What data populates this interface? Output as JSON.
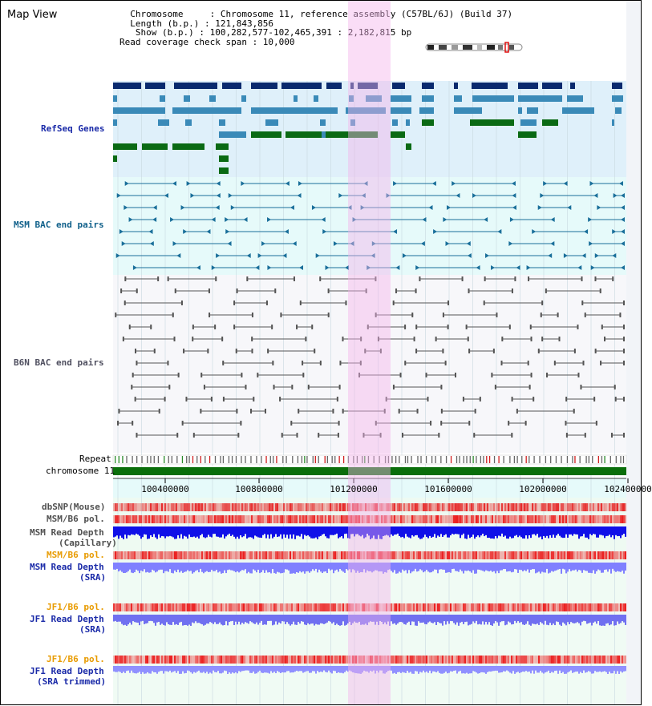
{
  "window": {
    "title": "Map View"
  },
  "info": {
    "lines": [
      "  Chromosome     : Chromosome 11, reference assembly (C57BL/6J) (Build 37)",
      "  Length (b.p.) : 121,843,856",
      "   Show (b.p.) : 100,282,577-102,465,391 : 2,182,815 bp",
      "Read coverage check span : 10,000"
    ]
  },
  "tracks": {
    "refseq": "RefSeq Genes",
    "msm_bac": "MSM BAC end pairs",
    "b6n_bac": "B6N BAC end pairs",
    "repeat": "Repeat",
    "chromosome": "chromosome 11",
    "dbsnp": "dbSNP(Mouse)",
    "msm_b6_pol_1": "MSM/B6 pol.",
    "msm_read_depth_cap_1": "MSM Read Depth",
    "msm_read_depth_cap_2": "(Capillary)",
    "msm_b6_pol_2": "MSM/B6 pol.",
    "msm_read_depth_sra_1": "MSM Read Depth",
    "msm_read_depth_sra_2": "(SRA)",
    "jf1_b6_pol_1": "JF1/B6 pol.",
    "jf1_read_depth_sra_1": "JF1 Read Depth",
    "jf1_read_depth_sra_2": "(SRA)",
    "jf1_b6_pol_2": "JF1/B6 pol.",
    "jf1_read_depth_trim_1": "JF1 Read Depth",
    "jf1_read_depth_trim_2": "(SRA trimmed)"
  },
  "axis": {
    "ticks": [
      "100400000",
      "100800000",
      "101200000",
      "101600000",
      "102000000",
      "102400000"
    ]
  },
  "colors": {
    "refseq_bg": "#dff0fa",
    "msm_bg": "#e6fafa",
    "b6n_bg": "#f7f7fa",
    "highlight": "#f8d8f4",
    "gene_dark": "#0a2a6e",
    "gene_mid": "#3a8ab8",
    "gene_green": "#0a6a14",
    "msm_line": "#1a6f9a",
    "b6n_line": "#555555",
    "chromosome_bar": "#0a6e0a",
    "label_blue": "#1a2aa8",
    "label_teal": "#10608a",
    "label_gray": "#505060",
    "label_orange": "#e89b00",
    "label_dark": "#303030"
  }
}
